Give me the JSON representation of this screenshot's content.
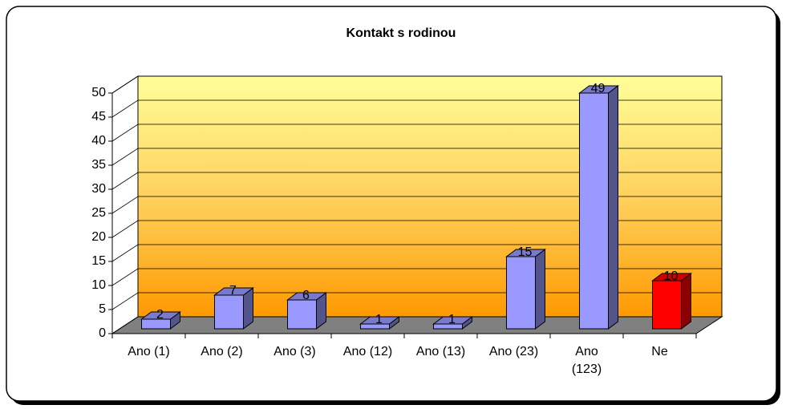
{
  "chart_data": {
    "type": "bar3d",
    "title": "Kontakt s rodinou",
    "categories": [
      "Ano (1)",
      "Ano (2)",
      "Ano (3)",
      "Ano (12)",
      "Ano (13)",
      "Ano (23)",
      "Ano (123)",
      "Ne"
    ],
    "values": [
      2,
      7,
      6,
      1,
      1,
      15,
      49,
      10
    ],
    "colors": [
      "#9999ff",
      "#9999ff",
      "#9999ff",
      "#9999ff",
      "#9999ff",
      "#9999ff",
      "#9999ff",
      "#ff0000"
    ],
    "ylim": [
      0,
      50
    ],
    "yticks": [
      0,
      5,
      10,
      15,
      20,
      25,
      30,
      35,
      40,
      45,
      50
    ],
    "grid": true
  }
}
